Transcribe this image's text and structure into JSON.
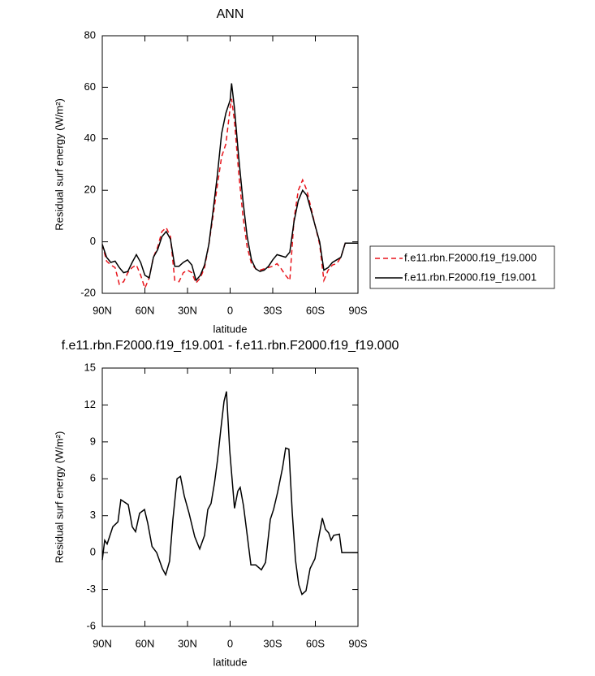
{
  "chart_data": [
    {
      "type": "line",
      "title": "ANN",
      "x_label": "latitude",
      "y_label": "Residual surf energy (W/m²)",
      "x": [
        90,
        87,
        84,
        81,
        78,
        75,
        72,
        69,
        66,
        63,
        60,
        57,
        54,
        51,
        48,
        45,
        42,
        39,
        36,
        33,
        30,
        27,
        24,
        21,
        18,
        15,
        12,
        9,
        6,
        3,
        0,
        -1,
        -3,
        -6,
        -9,
        -12,
        -15,
        -18,
        -21,
        -24,
        -27,
        -30,
        -33,
        -36,
        -39,
        -42,
        -45,
        -48,
        -51,
        -54,
        -57,
        -60,
        -63,
        -66,
        -69,
        -72,
        -75,
        -78,
        -81,
        -84,
        -87,
        -90
      ],
      "series": [
        {
          "name": "f.e11.rbn.F2000.f19_f19.000",
          "color": "#e8141b",
          "line_style": "dashed",
          "values": [
            -1,
            -7.5,
            -9,
            -10,
            -16.5,
            -15.5,
            -12,
            -10,
            -9,
            -13,
            -18,
            -14,
            -6,
            -2,
            4,
            5.5,
            2,
            -15,
            -15.5,
            -12,
            -11,
            -12,
            -16,
            -14,
            -10,
            -1,
            10,
            22,
            33,
            38,
            52,
            55.5,
            47,
            27,
            10,
            -2,
            -8.5,
            -10.5,
            -11,
            -10.5,
            -10,
            -9.5,
            -8.5,
            -10.5,
            -13,
            -15,
            9,
            20,
            24,
            20,
            13,
            6,
            -1,
            -15,
            -11,
            -9,
            -8.5,
            -6,
            -0.5,
            -0.5,
            -0.5,
            -0.5
          ]
        },
        {
          "name": "f.e11.rbn.F2000.f19_f19.001",
          "color": "#000000",
          "line_style": "solid",
          "values": [
            -1,
            -6,
            -8,
            -7.5,
            -10,
            -12,
            -11.5,
            -8,
            -5,
            -8,
            -13,
            -14,
            -6,
            -3,
            2,
            4,
            1,
            -9.5,
            -9.5,
            -8,
            -7,
            -9,
            -15,
            -13,
            -9,
            -1,
            12,
            26,
            42,
            50,
            55,
            61.5,
            52,
            33,
            16,
            2,
            -7,
            -10.5,
            -11.5,
            -11,
            -9.5,
            -7,
            -5,
            -5.5,
            -6,
            -4,
            8,
            16,
            20,
            18,
            12,
            6,
            0,
            -11,
            -10,
            -8,
            -7,
            -6,
            -0.5,
            -0.5,
            -0.5,
            -0.5
          ]
        }
      ],
      "xlim": [
        90,
        -90
      ],
      "xticks": [
        {
          "value": 90,
          "label": "90N"
        },
        {
          "value": 60,
          "label": "60N"
        },
        {
          "value": 30,
          "label": "30N"
        },
        0,
        {
          "value": -30,
          "label": "30S"
        },
        {
          "value": -60,
          "label": "60S"
        },
        {
          "value": -90,
          "label": "90S"
        }
      ],
      "ylim": [
        -20,
        80
      ],
      "yticks": [
        -20,
        0,
        20,
        40,
        60,
        80
      ],
      "legend": "right"
    },
    {
      "type": "line",
      "title": "f.e11.rbn.F2000.f19_f19.001 - f.e11.rbn.F2000.f19_f19.000",
      "x_label": "latitude",
      "y_label": "Residual surf energy (W/m²)",
      "x": [
        90,
        88.3,
        86.6,
        82.6,
        79,
        76.9,
        71.7,
        68.9,
        66.6,
        63.7,
        60.3,
        58,
        55,
        51.7,
        47.7,
        45.4,
        42.6,
        40.3,
        37.4,
        35,
        32.3,
        28.9,
        24.9,
        21.4,
        18,
        15.7,
        13.4,
        11.1,
        8.9,
        6.6,
        4.3,
        2.6,
        0.3,
        -3.1,
        -5.4,
        -7.1,
        -9.4,
        -11.7,
        -14.6,
        -18,
        -22,
        -24.9,
        -28.3,
        -30.6,
        -33.4,
        -36.9,
        -39.1,
        -41.4,
        -43.7,
        -46,
        -48.3,
        -50.6,
        -53.4,
        -56.3,
        -59.7,
        -62,
        -64.9,
        -67.1,
        -69.4,
        -71.1,
        -72.9,
        -76.9,
        -78.6,
        -90
      ],
      "series": [
        {
          "color": "#000000",
          "line_style": "solid",
          "values": [
            -0.6,
            1,
            0.7,
            2.1,
            2.5,
            4.3,
            3.9,
            2.1,
            1.7,
            3.2,
            3.5,
            2.4,
            0.5,
            0,
            -1.3,
            -1.8,
            -0.7,
            2.7,
            6,
            6.2,
            4.6,
            3.2,
            1.3,
            0.3,
            1.4,
            3.5,
            4,
            5.6,
            7.5,
            10,
            12.3,
            13.1,
            8.3,
            3.6,
            5,
            5.3,
            3.8,
            1.7,
            -1,
            -1,
            -1.4,
            -0.8,
            2.7,
            3.5,
            4.9,
            6.9,
            8.5,
            8.4,
            3.3,
            -0.6,
            -2.6,
            -3.4,
            -3.1,
            -1.3,
            -0.5,
            1,
            2.8,
            1.9,
            1.6,
            1,
            1.4,
            1.5,
            0,
            0
          ]
        }
      ],
      "xlim": [
        90,
        -90
      ],
      "xticks": [
        {
          "value": 90,
          "label": "90N"
        },
        {
          "value": 60,
          "label": "60N"
        },
        {
          "value": 30,
          "label": "30N"
        },
        0,
        {
          "value": -30,
          "label": "30S"
        },
        {
          "value": -60,
          "label": "60S"
        },
        {
          "value": -90,
          "label": "90S"
        }
      ],
      "ylim": [
        -6,
        15
      ],
      "yticks": [
        -6,
        -3,
        0,
        3,
        6,
        9,
        12,
        15
      ]
    }
  ]
}
